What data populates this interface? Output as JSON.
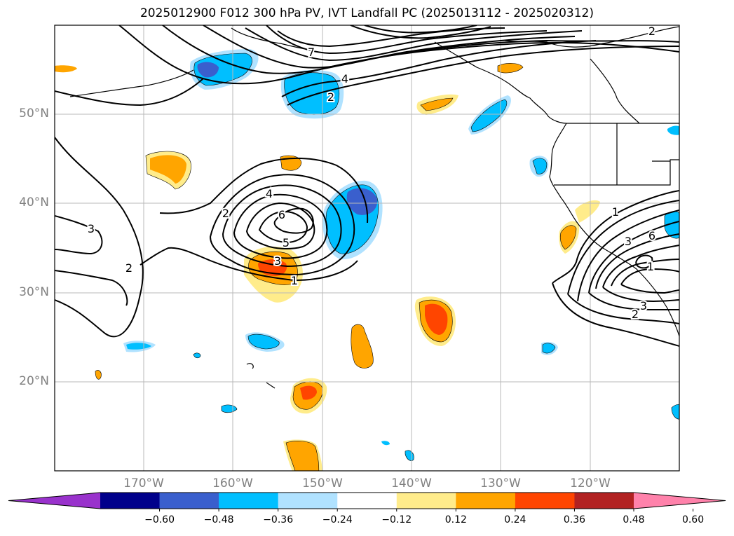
{
  "title": "2025012900 F012 300 hPa PV, IVT Landfall PC (2025013112 - 2025020312)",
  "map": {
    "lat_ticks": [
      {
        "value": 50,
        "label": "50°N"
      },
      {
        "value": 40,
        "label": "40°N"
      },
      {
        "value": 30,
        "label": "30°N"
      },
      {
        "value": 20,
        "label": "20°N"
      }
    ],
    "lon_ticks": [
      {
        "value": -170,
        "label": "170°W"
      },
      {
        "value": -160,
        "label": "160°W"
      },
      {
        "value": -150,
        "label": "150°W"
      },
      {
        "value": -140,
        "label": "140°W"
      },
      {
        "value": -130,
        "label": "130°W"
      },
      {
        "value": -120,
        "label": "120°W"
      }
    ],
    "contour_labels": [
      "7",
      "4",
      "2",
      "2",
      "2",
      "4",
      "6",
      "5",
      "3",
      "1",
      "3",
      "2",
      "1",
      "3",
      "6",
      "1",
      "3",
      "2"
    ]
  },
  "colorbar": {
    "colors": [
      "#9932cc",
      "#00008b",
      "#3a5fcd",
      "#00bfff",
      "#b0e2ff",
      "#ffffff",
      "#ffec8b",
      "#ffa500",
      "#ff4500",
      "#b22222",
      "#ff82ab"
    ],
    "tick_labels": [
      "−0.60",
      "−0.48",
      "−0.36",
      "−0.24",
      "−0.12",
      "0.12",
      "0.24",
      "0.36",
      "0.48",
      "0.60"
    ]
  }
}
